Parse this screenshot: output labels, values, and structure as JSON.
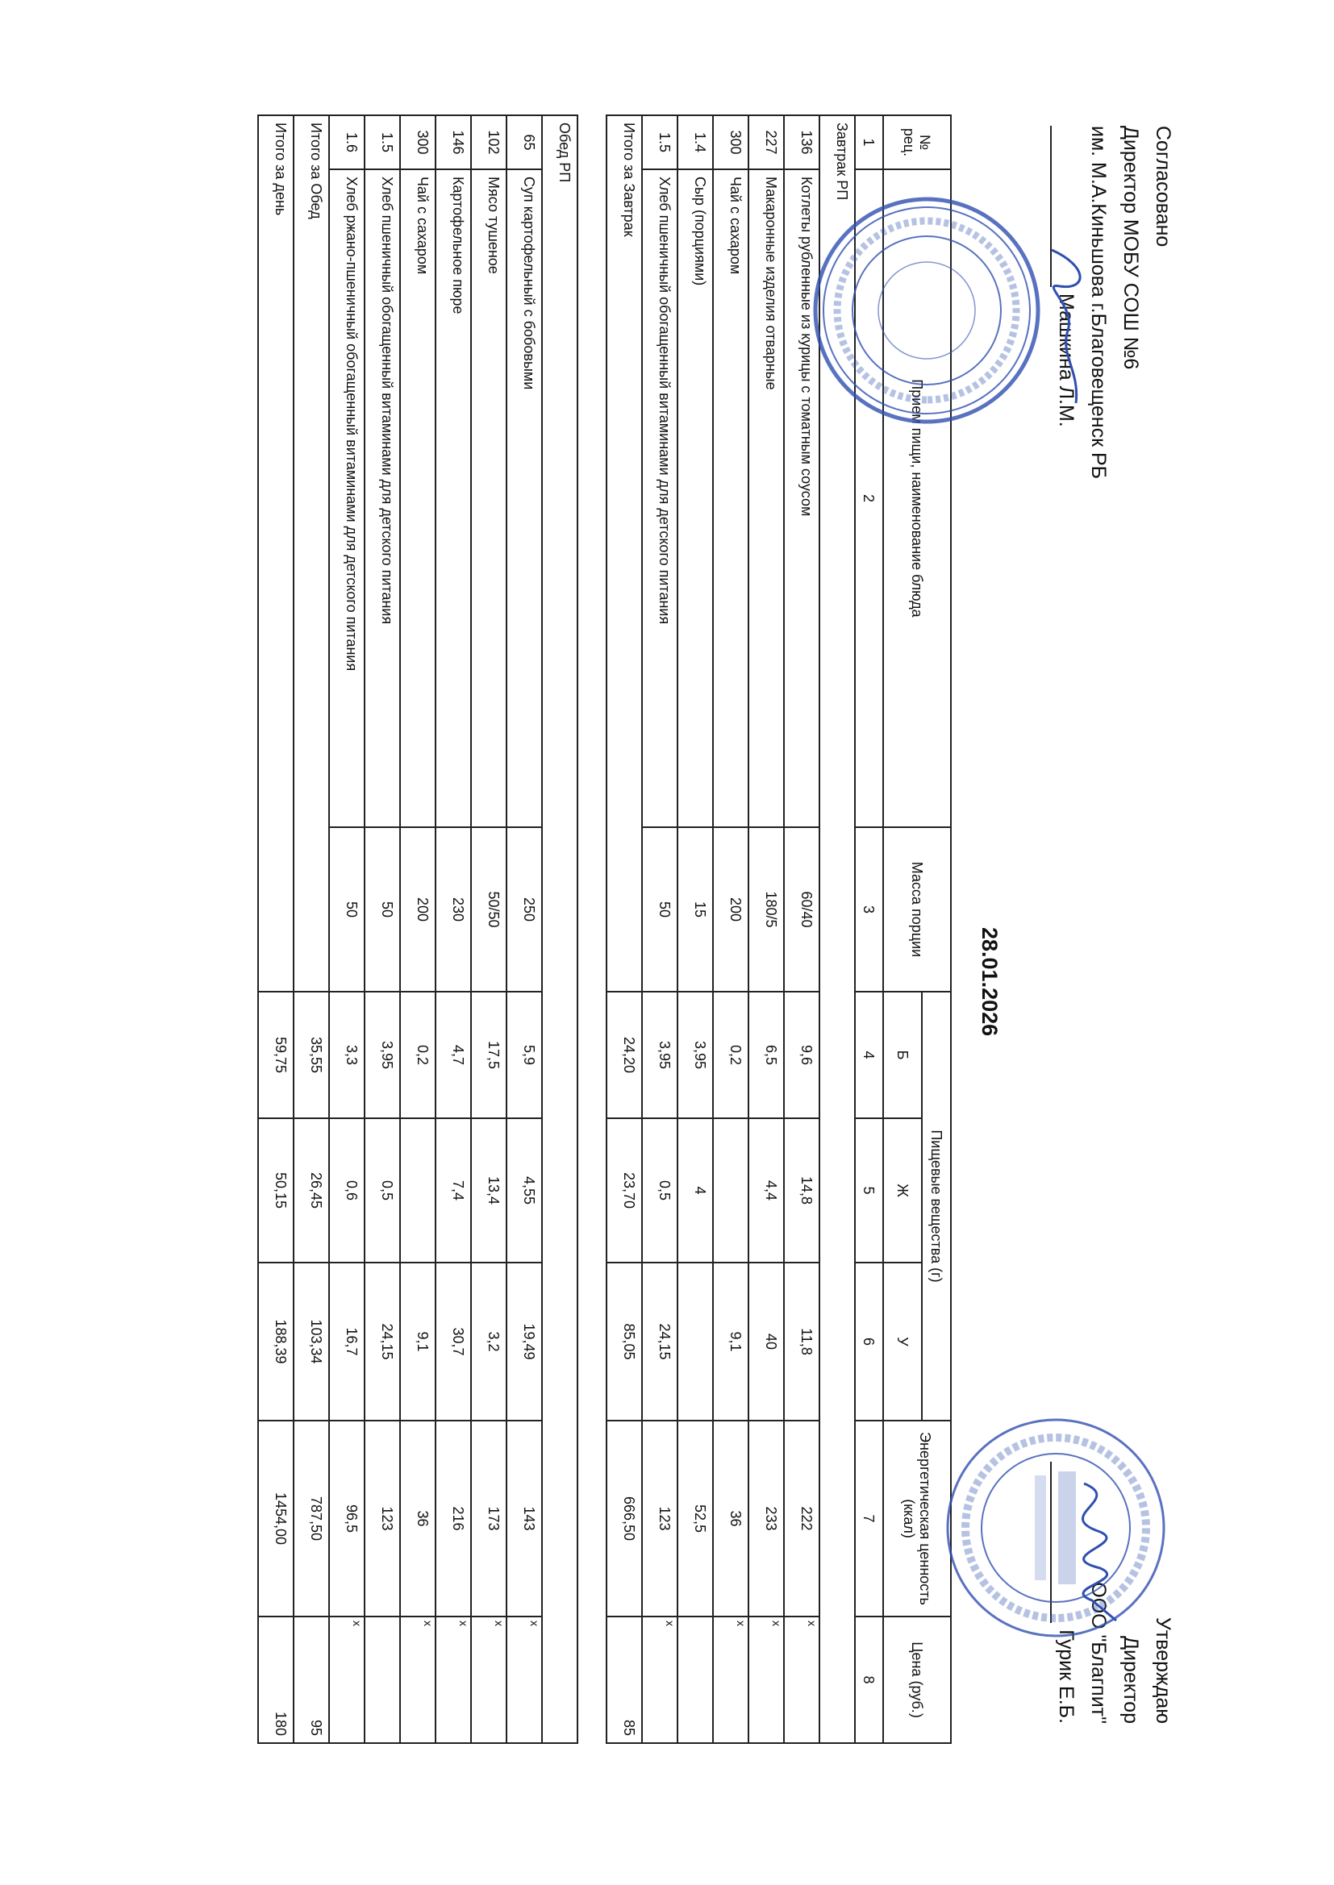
{
  "approval_left": {
    "title": "Согласовано",
    "line1": "Директор МОБУ СОШ №6",
    "line2": "им. М.А.Киньшова г.Благовещенск РБ",
    "signer": "Машкина Л.М."
  },
  "approval_right": {
    "title": "Утверждаю",
    "line1": "Директор",
    "line2": "ООО \"Благпит\"",
    "signer": "Гурик Е.Б."
  },
  "date": "28.01.2026",
  "table": {
    "headers": {
      "recipe_no": "№ рец.",
      "meal_name": "Прием пищи, наименование блюда",
      "portion": "Масса порции",
      "nutrients": "Пищевые вещества (г)",
      "protein": "Б",
      "fat": "Ж",
      "carbs": "У",
      "energy": "Энергетическая ценность (ккал)",
      "price": "Цена   (руб.)"
    },
    "column_numbers": [
      "1",
      "2",
      "3",
      "4",
      "5",
      "6",
      "7",
      "8"
    ],
    "rows": [
      {
        "type": "section",
        "label": "Завтрак  РП"
      },
      {
        "type": "dish",
        "no": "136",
        "name": "Котлеты рубленные из курицы с томатным соусом",
        "mass": "60/40",
        "b": "9,6",
        "zh": "14,8",
        "u": "11,8",
        "kcal": "222",
        "price_mark": "x"
      },
      {
        "type": "dish",
        "no": "227",
        "name": "Макаронные изделия отварные",
        "mass": "180/5",
        "b": "6,5",
        "zh": "4,4",
        "u": "40",
        "kcal": "233",
        "price_mark": "x"
      },
      {
        "type": "dish",
        "no": "300",
        "name": "Чай с сахаром",
        "mass": "200",
        "b": "0,2",
        "zh": "",
        "u": "9,1",
        "kcal": "36",
        "price_mark": "x"
      },
      {
        "type": "dish",
        "no": "1.4",
        "name": "Сыр (порциями)",
        "mass": "15",
        "b": "3,95",
        "zh": "4",
        "u": "",
        "kcal": "52,5",
        "price_mark": ""
      },
      {
        "type": "dish",
        "no": "1.5",
        "name": "Хлеб пшеничный обогащенный витаминами для детского питания",
        "mass": "50",
        "b": "3,95",
        "zh": "0,5",
        "u": "24,15",
        "kcal": "123",
        "price_mark": "x"
      },
      {
        "type": "total",
        "label": "Итого за Завтрак",
        "b": "24,20",
        "zh": "23,70",
        "u": "85,05",
        "kcal": "666,50",
        "price": "85"
      },
      {
        "type": "gap"
      },
      {
        "type": "section",
        "label": "Обед  РП"
      },
      {
        "type": "dish",
        "no": "65",
        "name": "Суп картофельный с бобовыми",
        "mass": "250",
        "b": "5,9",
        "zh": "4,55",
        "u": "19,49",
        "kcal": "143",
        "price_mark": "x"
      },
      {
        "type": "dish",
        "no": "102",
        "name": "Мясо тушеное",
        "mass": "50/50",
        "b": "17,5",
        "zh": "13,4",
        "u": "3,2",
        "kcal": "173",
        "price_mark": "x"
      },
      {
        "type": "dish",
        "no": "146",
        "name": "Картофельное пюре",
        "mass": "230",
        "b": "4,7",
        "zh": "7,4",
        "u": "30,7",
        "kcal": "216",
        "price_mark": "x"
      },
      {
        "type": "dish",
        "no": "300",
        "name": "Чай с сахаром",
        "mass": "200",
        "b": "0,2",
        "zh": "",
        "u": "9,1",
        "kcal": "36",
        "price_mark": "x"
      },
      {
        "type": "dish",
        "no": "1.5",
        "name": "Хлеб пшеничный обогащенный витаминами для детского питания",
        "mass": "50",
        "b": "3,95",
        "zh": "0,5",
        "u": "24,15",
        "kcal": "123",
        "price_mark": ""
      },
      {
        "type": "dish",
        "no": "1.6",
        "name": "Хлеб ржано-пшеничный обогащенный витаминами для детского питания",
        "mass": "50",
        "b": "3,3",
        "zh": "0,6",
        "u": "16,7",
        "kcal": "96,5",
        "price_mark": "x"
      },
      {
        "type": "total",
        "label": "Итого за Обед",
        "b": "35,55",
        "zh": "26,45",
        "u": "103,34",
        "kcal": "787,50",
        "price": "95"
      },
      {
        "type": "total",
        "label": "Итого за день",
        "b": "59,75",
        "zh": "50,15",
        "u": "188,39",
        "kcal": "1454,00",
        "price": "180"
      }
    ]
  },
  "stamps": {
    "school_seal": "МОБУ СОШ № 6 им. М.А Киняшова г. Благовещенск РБ ОГРН 1020201700562 ИНН 0258007667",
    "company_seal": "ОБЩЕСТВО С ОГРАНИЧЕННОЙ ОТВЕТСТВЕННОСТЬЮ «Благпит» ДЛЯ ДОКУМЕНТОВ БЛАГОВЕЩЕНСК РЕСПУБЛИКА БАШКОРТОСТАН",
    "ink_color": "#2f4fb0"
  }
}
